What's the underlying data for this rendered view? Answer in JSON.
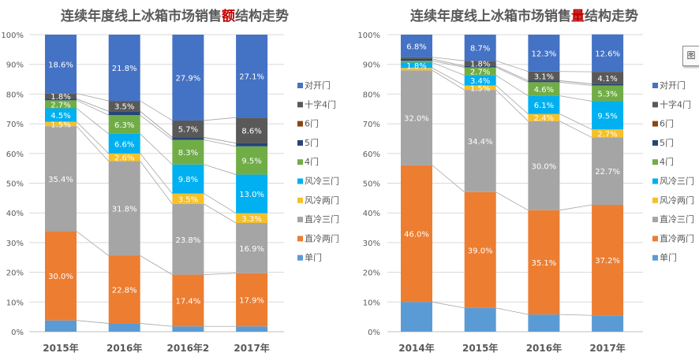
{
  "colors": {
    "对开门": "#4472c4",
    "十字4门": "#595959",
    "6门": "#8b4513",
    "5门": "#264478",
    "4门": "#70ad47",
    "风冷三门": "#00b0f0",
    "风冷两门": "#f5c02a",
    "直冷三门": "#a5a5a5",
    "直冷两门": "#ed7d31",
    "单门": "#5b9bd5"
  },
  "chart_data": [
    {
      "type": "bar",
      "stacked": "100%",
      "title_parts": [
        "连续年度线上冰箱市场销售",
        "额",
        "结构走势"
      ],
      "title": "连续年度线上冰箱市场销售额结构走势",
      "categories": [
        "2015年",
        "2016年",
        "2016年2",
        "2017年"
      ],
      "ylim": [
        0,
        100
      ],
      "yticks": [
        "0%",
        "10%",
        "20%",
        "30%",
        "40%",
        "50%",
        "60%",
        "70%",
        "80%",
        "90%",
        "100%"
      ],
      "grid": true,
      "legend_position": "right",
      "legend": [
        "对开门",
        "十字4门",
        "6门",
        "5门",
        "4门",
        "风冷三门",
        "风冷两门",
        "直冷三门",
        "直冷两门",
        "单门"
      ],
      "series": [
        {
          "name": "单门",
          "values": [
            3.8,
            2.8,
            1.8,
            1.8
          ],
          "labels": [
            "",
            "",
            "",
            ""
          ]
        },
        {
          "name": "直冷两门",
          "values": [
            30.0,
            22.8,
            17.4,
            17.9
          ],
          "labels": [
            "30.0%",
            "22.8%",
            "17.4%",
            "17.9%"
          ]
        },
        {
          "name": "直冷三门",
          "values": [
            35.4,
            31.8,
            23.8,
            16.9
          ],
          "labels": [
            "35.4%",
            "31.8%",
            "23.8%",
            "16.9%"
          ]
        },
        {
          "name": "风冷两门",
          "values": [
            1.5,
            2.6,
            3.5,
            3.3
          ],
          "labels": [
            "1.5%",
            "2.6%",
            "3.5%",
            "3.3%"
          ]
        },
        {
          "name": "风冷三门",
          "values": [
            4.5,
            6.6,
            9.8,
            13.0
          ],
          "labels": [
            "4.5%",
            "6.6%",
            "9.8%",
            "13.0%"
          ]
        },
        {
          "name": "4门",
          "values": [
            2.7,
            6.3,
            8.3,
            9.5
          ],
          "labels": [
            "2.7%",
            "6.3%",
            "8.3%",
            "9.5%"
          ]
        },
        {
          "name": "5门",
          "values": [
            0.5,
            1.3,
            0.8,
            1.1
          ],
          "labels": [
            "",
            "",
            "",
            ""
          ]
        },
        {
          "name": "6门",
          "values": [
            0.0,
            0.0,
            0.0,
            0.0
          ],
          "labels": [
            "",
            "",
            "",
            ""
          ]
        },
        {
          "name": "十字4门",
          "values": [
            1.8,
            3.5,
            5.7,
            8.6
          ],
          "labels": [
            "1.8%",
            "3.5%",
            "5.7%",
            "8.6%"
          ]
        },
        {
          "name": "对开门",
          "values": [
            18.6,
            21.8,
            27.9,
            27.1
          ],
          "labels": [
            "18.6%",
            "21.8%",
            "27.9%",
            "27.1%"
          ]
        }
      ]
    },
    {
      "type": "bar",
      "stacked": "100%",
      "title_parts": [
        "连续年度线上冰箱市场销售",
        "量",
        "结构走势"
      ],
      "title": "连续年度线上冰箱市场销售量结构走势",
      "categories": [
        "2014年",
        "2015年",
        "2016年",
        "2017年"
      ],
      "ylim": [
        0,
        100
      ],
      "yticks": [
        "0%",
        "10%",
        "20%",
        "30%",
        "40%",
        "50%",
        "60%",
        "70%",
        "80%",
        "90%",
        "100%"
      ],
      "grid": true,
      "legend_position": "right",
      "legend": [
        "对开门",
        "十字4门",
        "6门",
        "5门",
        "4门",
        "风冷三门",
        "风冷两门",
        "直冷三门",
        "直冷两门",
        "单门"
      ],
      "series": [
        {
          "name": "单门",
          "values": [
            10.0,
            8.0,
            5.8,
            5.5
          ],
          "labels": [
            "",
            "",
            "",
            ""
          ]
        },
        {
          "name": "直冷两门",
          "values": [
            46.0,
            39.0,
            35.1,
            37.2
          ],
          "labels": [
            "46.0%",
            "39.0%",
            "35.1%",
            "37.2%"
          ]
        },
        {
          "name": "直冷三门",
          "values": [
            32.0,
            34.4,
            30.0,
            22.7
          ],
          "labels": [
            "32.0%",
            "34.4%",
            "30.0%",
            "22.7%"
          ]
        },
        {
          "name": "风冷两门",
          "values": [
            0.8,
            1.5,
            2.4,
            2.7
          ],
          "labels": [
            "",
            "1.5%",
            "2.4%",
            "2.7%"
          ]
        },
        {
          "name": "风冷三门",
          "values": [
            1.8,
            3.4,
            6.1,
            9.5
          ],
          "labels": [
            "1.8%",
            "3.4%",
            "6.1%",
            "9.5%"
          ]
        },
        {
          "name": "4门",
          "values": [
            0.6,
            2.7,
            4.6,
            5.3
          ],
          "labels": [
            "",
            "2.7%",
            "4.6%",
            "5.3%"
          ]
        },
        {
          "name": "5门",
          "values": [
            0.6,
            0.4,
            0.5,
            0.5
          ],
          "labels": [
            "",
            "",
            "",
            ""
          ]
        },
        {
          "name": "6门",
          "values": [
            0.0,
            0.0,
            0.0,
            0.0
          ],
          "labels": [
            "",
            "",
            "",
            ""
          ]
        },
        {
          "name": "十字4门",
          "values": [
            0.6,
            1.8,
            3.1,
            4.1
          ],
          "labels": [
            "",
            "1.8%",
            "3.1%",
            "4.1%"
          ]
        },
        {
          "name": "对开门",
          "values": [
            6.8,
            8.7,
            12.3,
            12.6
          ],
          "labels": [
            "6.8%",
            "8.7%",
            "12.3%",
            "12.6%"
          ]
        }
      ]
    }
  ],
  "corner_button": {
    "label": "图"
  }
}
